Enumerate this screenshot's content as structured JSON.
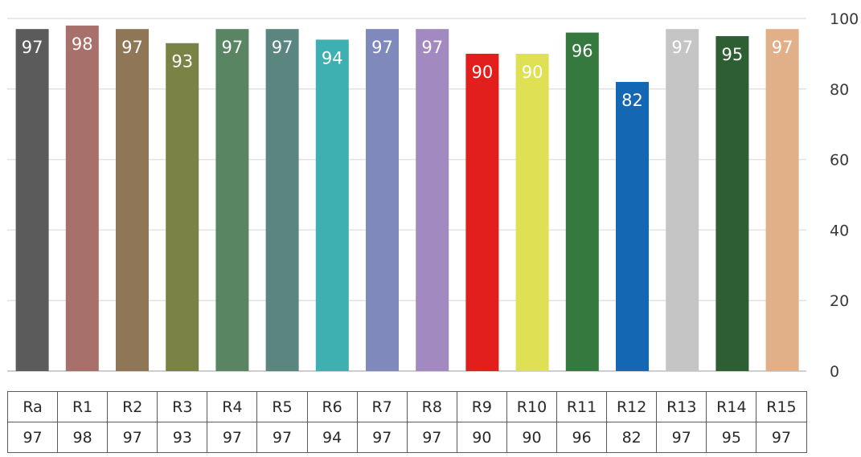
{
  "chart_data": {
    "type": "bar",
    "title": "",
    "xlabel": "",
    "ylabel": "",
    "ylim": [
      0,
      100
    ],
    "yticks": [
      0,
      20,
      40,
      60,
      80,
      100
    ],
    "grid": true,
    "categories": [
      "Ra",
      "R1",
      "R2",
      "R3",
      "R4",
      "R5",
      "R6",
      "R7",
      "R8",
      "R9",
      "R10",
      "R11",
      "R12",
      "R13",
      "R14",
      "R15"
    ],
    "values": [
      97,
      98,
      97,
      93,
      97,
      97,
      94,
      97,
      97,
      90,
      90,
      96,
      82,
      97,
      95,
      97
    ],
    "colors": [
      "#5b5b5b",
      "#a8706a",
      "#8e7656",
      "#7b8245",
      "#5a8563",
      "#5b857f",
      "#3fb0b2",
      "#7f89bb",
      "#a28ac0",
      "#e21f1c",
      "#e0e055",
      "#35793f",
      "#1467b2",
      "#c5c5c5",
      "#2e5e34",
      "#e2b088"
    ],
    "label_colors": [
      "#ffffff",
      "#ffffff",
      "#ffffff",
      "#ffffff",
      "#ffffff",
      "#ffffff",
      "#ffffff",
      "#ffffff",
      "#ffffff",
      "#ffffff",
      "#ffffff",
      "#ffffff",
      "#ffffff",
      "#ffffff",
      "#ffffff",
      "#ffffff"
    ],
    "y_axis_position": "right",
    "table": true
  }
}
